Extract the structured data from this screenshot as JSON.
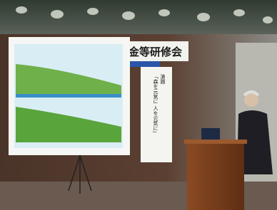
{
  "banner": {
    "title": "金等研修会"
  },
  "sign": {
    "lines": [
      "演題",
      "「森を元気に 人を元気に」"
    ]
  }
}
